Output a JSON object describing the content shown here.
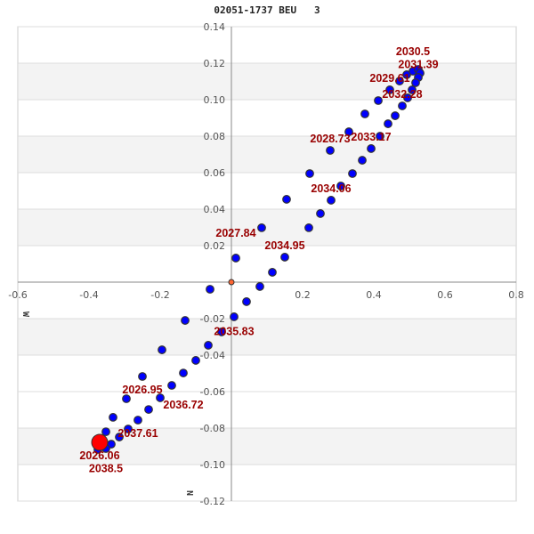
{
  "chart_data": {
    "type": "scatter",
    "title": "02051-1737 BEU   3",
    "xlabel": "W",
    "ylabel": "N",
    "xlim": [
      -0.6,
      0.8
    ],
    "ylim": [
      -0.12,
      0.14
    ],
    "x_ticks": [
      "-0.6",
      "-0.4",
      "-0.2",
      "0.2",
      "0.4",
      "0.6",
      "0.8"
    ],
    "x_tick_values": [
      -0.6,
      -0.4,
      -0.2,
      0.2,
      0.4,
      0.6,
      0.8
    ],
    "y_ticks": [
      "0.14",
      "0.12",
      "0.10",
      "0.08",
      "0.06",
      "0.04",
      "0.02",
      "-0.02",
      "-0.04",
      "-0.06",
      "-0.08",
      "-0.10",
      "-0.12"
    ],
    "y_tick_values": [
      0.14,
      0.12,
      0.1,
      0.08,
      0.06,
      0.04,
      0.02,
      -0.02,
      -0.04,
      -0.06,
      -0.08,
      -0.1,
      -0.12
    ],
    "grid": true,
    "shaded_bands": [
      [
        0.1,
        0.12
      ],
      [
        0.06,
        0.08
      ],
      [
        0.02,
        0.04
      ],
      [
        -0.04,
        -0.02
      ],
      [
        -0.1,
        -0.08
      ]
    ],
    "colors": {
      "points": "#0000ff",
      "point_outline": "#333333",
      "current": "#ff0000",
      "origin": "#ff6633",
      "labels": "#990000",
      "band": "#f3f3f3",
      "grid": "#dddddd",
      "axis": "#888888"
    },
    "origin": {
      "x": 0,
      "y": 0
    },
    "current_position": {
      "x": -0.37,
      "y": -0.0878
    },
    "points": [
      [
        -0.3525,
        -0.082
      ],
      [
        -0.3325,
        -0.0741
      ],
      [
        -0.295,
        -0.0639
      ],
      [
        -0.25,
        -0.0517
      ],
      [
        -0.195,
        -0.0371
      ],
      [
        -0.13,
        -0.021
      ],
      [
        -0.06,
        -0.0039
      ],
      [
        0.0125,
        0.0132
      ],
      [
        0.085,
        0.0298
      ],
      [
        0.155,
        0.0454
      ],
      [
        0.22,
        0.0595
      ],
      [
        0.2775,
        0.0722
      ],
      [
        0.33,
        0.0824
      ],
      [
        0.375,
        0.0922
      ],
      [
        0.4125,
        0.0995
      ],
      [
        0.445,
        0.1054
      ],
      [
        0.4725,
        0.1102
      ],
      [
        0.4925,
        0.1137
      ],
      [
        0.51,
        0.1156
      ],
      [
        0.525,
        0.1166
      ],
      [
        0.53,
        0.1146
      ],
      [
        0.525,
        0.1122
      ],
      [
        0.5175,
        0.1093
      ],
      [
        0.5075,
        0.1054
      ],
      [
        0.495,
        0.101
      ],
      [
        0.48,
        0.0966
      ],
      [
        0.46,
        0.0912
      ],
      [
        0.44,
        0.0868
      ],
      [
        0.4175,
        0.08
      ],
      [
        0.3925,
        0.0732
      ],
      [
        0.3675,
        0.0668
      ],
      [
        0.34,
        0.0595
      ],
      [
        0.3075,
        0.0527
      ],
      [
        0.28,
        0.0449
      ],
      [
        0.25,
        0.0376
      ],
      [
        0.2175,
        0.0298
      ],
      [
        0.15,
        0.0137
      ],
      [
        0.115,
        0.0054
      ],
      [
        0.08,
        -0.0024
      ],
      [
        0.0425,
        -0.0107
      ],
      [
        0.0075,
        -0.019
      ],
      [
        -0.0275,
        -0.0273
      ],
      [
        -0.065,
        -0.0346
      ],
      [
        -0.1,
        -0.0429
      ],
      [
        -0.135,
        -0.0498
      ],
      [
        -0.1675,
        -0.0566
      ],
      [
        -0.2,
        -0.0634
      ],
      [
        -0.2325,
        -0.0698
      ],
      [
        -0.2625,
        -0.0756
      ],
      [
        -0.29,
        -0.0805
      ],
      [
        -0.315,
        -0.0849
      ],
      [
        -0.3375,
        -0.0888
      ],
      [
        -0.3525,
        -0.0912
      ],
      [
        -0.375,
        -0.0917
      ]
    ],
    "labels": [
      {
        "text": "2026.06",
        "x": -0.37,
        "y": -0.0878,
        "pos": "below"
      },
      {
        "text": "2026.95",
        "x": -0.25,
        "y": -0.0517,
        "pos": "below"
      },
      {
        "text": "2027.84",
        "x": 0.0125,
        "y": 0.0132,
        "pos": "above"
      },
      {
        "text": "2028.73",
        "x": 0.2775,
        "y": 0.0722,
        "pos": "above"
      },
      {
        "text": "2029.61",
        "x": 0.445,
        "y": 0.1054,
        "pos": "above"
      },
      {
        "text": "2030.5",
        "x": 0.51,
        "y": 0.1156,
        "pos": "above"
      },
      {
        "text": "2031.39",
        "x": 0.525,
        "y": 0.1122,
        "pos": "above"
      },
      {
        "text": "2032.28",
        "x": 0.48,
        "y": 0.0966,
        "pos": "above"
      },
      {
        "text": "2033.17",
        "x": 0.3925,
        "y": 0.0732,
        "pos": "above"
      },
      {
        "text": "2034.06",
        "x": 0.28,
        "y": 0.0449,
        "pos": "above"
      },
      {
        "text": "2034.95",
        "x": 0.15,
        "y": 0.0137,
        "pos": "above"
      },
      {
        "text": "2035.83",
        "x": 0.0075,
        "y": -0.019,
        "pos": "below"
      },
      {
        "text": "2036.72",
        "x": -0.135,
        "y": -0.0498,
        "pos": "below"
      },
      {
        "text": "2037.61",
        "x": -0.2625,
        "y": -0.0756,
        "pos": "below"
      },
      {
        "text": "2038.5",
        "x": -0.3525,
        "y": -0.0912,
        "pos": "below"
      }
    ]
  }
}
